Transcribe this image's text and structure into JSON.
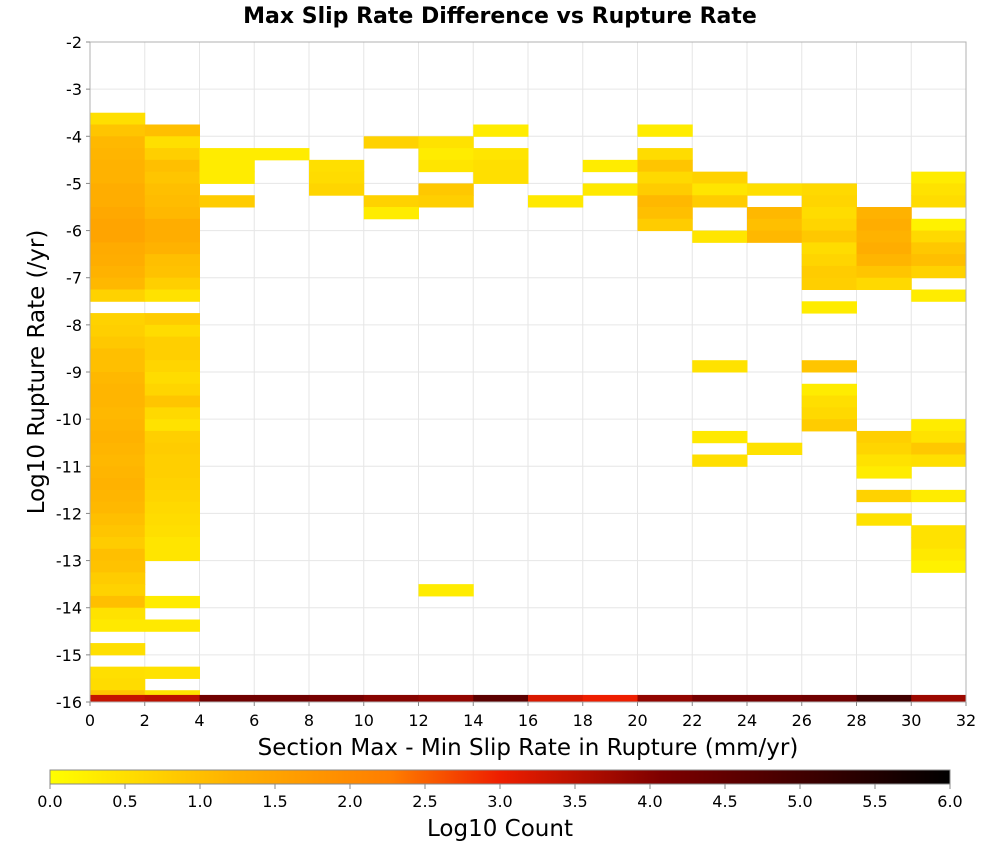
{
  "chart_data": {
    "type": "heatmap",
    "title": "Max Slip Rate Difference vs Rupture Rate",
    "xlabel": "Section Max - Min Slip Rate in Rupture (mm/yr)",
    "ylabel": "Log10 Rupture Rate (/yr)",
    "xlim": [
      0,
      32
    ],
    "ylim": [
      -16,
      -2
    ],
    "x_ticks": [
      "0",
      "2",
      "4",
      "6",
      "8",
      "10",
      "12",
      "14",
      "16",
      "18",
      "20",
      "22",
      "24",
      "26",
      "28",
      "30",
      "32"
    ],
    "y_ticks": [
      "-2",
      "-3",
      "-4",
      "-5",
      "-6",
      "-7",
      "-8",
      "-9",
      "-10",
      "-11",
      "-12",
      "-13",
      "-14",
      "-15",
      "-16"
    ],
    "x_bin_width": 2,
    "y_bin_height": 0.25,
    "grid": true,
    "colorbar": {
      "label": "Log10 Count",
      "range": [
        0,
        6
      ],
      "ticks": [
        "0.0",
        "0.5",
        "1.0",
        "1.5",
        "2.0",
        "2.5",
        "3.0",
        "3.5",
        "4.0",
        "4.5",
        "5.0",
        "5.5",
        "6.0"
      ],
      "colors": [
        "#ffff00",
        "#ffb200",
        "#ff7d00",
        "#ee1e00",
        "#7d0000",
        "#000000"
      ]
    },
    "cells": [
      [
        0,
        -3.5,
        0.5
      ],
      [
        0,
        -3.75,
        0.9
      ],
      [
        0,
        -4,
        1.1
      ],
      [
        0,
        -4.25,
        1.15
      ],
      [
        0,
        -4.5,
        1.2
      ],
      [
        0,
        -4.75,
        1.2
      ],
      [
        0,
        -5,
        1.3
      ],
      [
        0,
        -5.25,
        1.3
      ],
      [
        0,
        -5.5,
        1.4
      ],
      [
        0,
        -5.75,
        1.5
      ],
      [
        0,
        -6,
        1.5
      ],
      [
        0,
        -6.25,
        1.35
      ],
      [
        0,
        -6.5,
        1.3
      ],
      [
        0,
        -6.75,
        1.2
      ],
      [
        0,
        -7,
        1.1
      ],
      [
        0,
        -7.25,
        0.7
      ],
      [
        0,
        -7.75,
        0.7
      ],
      [
        0,
        -8,
        0.75
      ],
      [
        0,
        -8.25,
        0.85
      ],
      [
        0,
        -8.5,
        1.0
      ],
      [
        0,
        -8.75,
        1.0
      ],
      [
        0,
        -9,
        1.1
      ],
      [
        0,
        -9.25,
        1.15
      ],
      [
        0,
        -9.5,
        1.15
      ],
      [
        0,
        -9.75,
        1.1
      ],
      [
        0,
        -10,
        1.15
      ],
      [
        0,
        -10.25,
        1.2
      ],
      [
        0,
        -10.5,
        1.15
      ],
      [
        0,
        -10.75,
        1.1
      ],
      [
        0,
        -11,
        1.15
      ],
      [
        0,
        -11.25,
        1.2
      ],
      [
        0,
        -11.5,
        1.15
      ],
      [
        0,
        -11.75,
        1.1
      ],
      [
        0,
        -12,
        1.0
      ],
      [
        0,
        -12.25,
        0.9
      ],
      [
        0,
        -12.5,
        0.8
      ],
      [
        0,
        -12.75,
        1.0
      ],
      [
        0,
        -13,
        0.95
      ],
      [
        0,
        -13.25,
        0.8
      ],
      [
        0,
        -13.5,
        0.7
      ],
      [
        0,
        -13.75,
        1.0
      ],
      [
        0,
        -14,
        0.45
      ],
      [
        0,
        -14.25,
        0.35
      ],
      [
        0,
        -14.75,
        0.5
      ],
      [
        0,
        -15.25,
        0.5
      ],
      [
        0,
        -15.5,
        0.55
      ],
      [
        0,
        -15.75,
        0.9
      ],
      [
        2,
        -3.75,
        1.0
      ],
      [
        2,
        -4,
        0.5
      ],
      [
        2,
        -4.25,
        0.75
      ],
      [
        2,
        -4.5,
        1.0
      ],
      [
        2,
        -4.75,
        0.9
      ],
      [
        2,
        -5,
        1.0
      ],
      [
        2,
        -5.25,
        1.05
      ],
      [
        2,
        -5.5,
        1.1
      ],
      [
        2,
        -5.75,
        1.3
      ],
      [
        2,
        -6,
        1.3
      ],
      [
        2,
        -6.25,
        1.2
      ],
      [
        2,
        -6.5,
        1.0
      ],
      [
        2,
        -6.75,
        0.95
      ],
      [
        2,
        -7,
        0.75
      ],
      [
        2,
        -7.25,
        0.45
      ],
      [
        2,
        -7.75,
        0.8
      ],
      [
        2,
        -8,
        0.55
      ],
      [
        2,
        -8.25,
        0.75
      ],
      [
        2,
        -8.5,
        0.75
      ],
      [
        2,
        -8.75,
        0.65
      ],
      [
        2,
        -9,
        0.55
      ],
      [
        2,
        -9.25,
        0.65
      ],
      [
        2,
        -9.5,
        0.9
      ],
      [
        2,
        -9.75,
        0.6
      ],
      [
        2,
        -10,
        0.45
      ],
      [
        2,
        -10.25,
        0.75
      ],
      [
        2,
        -10.5,
        0.8
      ],
      [
        2,
        -10.75,
        0.75
      ],
      [
        2,
        -11,
        0.75
      ],
      [
        2,
        -11.25,
        0.7
      ],
      [
        2,
        -11.5,
        0.65
      ],
      [
        2,
        -11.75,
        0.6
      ],
      [
        2,
        -12,
        0.55
      ],
      [
        2,
        -12.25,
        0.5
      ],
      [
        2,
        -12.5,
        0.4
      ],
      [
        2,
        -12.75,
        0.4
      ],
      [
        2,
        -13.75,
        0.3
      ],
      [
        2,
        -14.25,
        0.35
      ],
      [
        2,
        -15.25,
        0.45
      ],
      [
        2,
        -15.75,
        0.45
      ],
      [
        4,
        -4.25,
        0.3
      ],
      [
        4,
        -4.5,
        0.3
      ],
      [
        4,
        -4.75,
        0.3
      ],
      [
        4,
        -5.25,
        0.8
      ],
      [
        6,
        -4.25,
        0.3
      ],
      [
        8,
        -4.5,
        0.5
      ],
      [
        8,
        -4.75,
        0.55
      ],
      [
        8,
        -5,
        0.65
      ],
      [
        10,
        -4,
        0.7
      ],
      [
        10,
        -5.25,
        0.7
      ],
      [
        10,
        -5.5,
        0.3
      ],
      [
        12,
        -4,
        0.45
      ],
      [
        12,
        -4.25,
        0.3
      ],
      [
        12,
        -4.5,
        0.4
      ],
      [
        12,
        -5,
        0.85
      ],
      [
        12,
        -5.25,
        0.75
      ],
      [
        12,
        -13.5,
        0.3
      ],
      [
        14,
        -3.75,
        0.3
      ],
      [
        14,
        -4.25,
        0.4
      ],
      [
        14,
        -4.5,
        0.5
      ],
      [
        14,
        -4.75,
        0.5
      ],
      [
        16,
        -5.25,
        0.35
      ],
      [
        18,
        -4.5,
        0.3
      ],
      [
        18,
        -5,
        0.35
      ],
      [
        20,
        -3.75,
        0.3
      ],
      [
        20,
        -4.25,
        0.55
      ],
      [
        20,
        -4.5,
        0.9
      ],
      [
        20,
        -4.75,
        0.6
      ],
      [
        20,
        -5,
        0.8
      ],
      [
        20,
        -5.25,
        1.1
      ],
      [
        20,
        -5.5,
        1.0
      ],
      [
        20,
        -5.75,
        0.8
      ],
      [
        22,
        -4.75,
        0.7
      ],
      [
        22,
        -5,
        0.4
      ],
      [
        22,
        -5.25,
        0.8
      ],
      [
        22,
        -6,
        0.4
      ],
      [
        22,
        -8.75,
        0.45
      ],
      [
        22,
        -10.25,
        0.35
      ],
      [
        22,
        -10.75,
        0.5
      ],
      [
        24,
        -5,
        0.5
      ],
      [
        24,
        -5.5,
        1.1
      ],
      [
        24,
        -5.75,
        1.0
      ],
      [
        24,
        -6,
        1.1
      ],
      [
        24,
        -10.5,
        0.45
      ],
      [
        26,
        -5,
        0.6
      ],
      [
        26,
        -5.25,
        0.65
      ],
      [
        26,
        -5.5,
        0.55
      ],
      [
        26,
        -5.75,
        0.65
      ],
      [
        26,
        -6,
        0.85
      ],
      [
        26,
        -6.25,
        0.55
      ],
      [
        26,
        -6.5,
        0.65
      ],
      [
        26,
        -6.75,
        0.8
      ],
      [
        26,
        -7,
        0.75
      ],
      [
        26,
        -7.5,
        0.3
      ],
      [
        26,
        -8.75,
        0.9
      ],
      [
        26,
        -9.25,
        0.3
      ],
      [
        26,
        -9.5,
        0.5
      ],
      [
        26,
        -9.75,
        0.6
      ],
      [
        26,
        -10,
        0.8
      ],
      [
        28,
        -5.5,
        1.2
      ],
      [
        28,
        -5.75,
        1.3
      ],
      [
        28,
        -6,
        1.2
      ],
      [
        28,
        -6.25,
        1.3
      ],
      [
        28,
        -6.5,
        1.15
      ],
      [
        28,
        -6.75,
        0.9
      ],
      [
        28,
        -7,
        0.6
      ],
      [
        28,
        -10.25,
        0.75
      ],
      [
        28,
        -10.5,
        0.65
      ],
      [
        28,
        -10.75,
        0.45
      ],
      [
        28,
        -11,
        0.3
      ],
      [
        28,
        -11.5,
        0.7
      ],
      [
        28,
        -12,
        0.45
      ],
      [
        30,
        -4.75,
        0.3
      ],
      [
        30,
        -5,
        0.45
      ],
      [
        30,
        -5.25,
        0.55
      ],
      [
        30,
        -5.75,
        0.2
      ],
      [
        30,
        -6,
        0.6
      ],
      [
        30,
        -6.25,
        0.85
      ],
      [
        30,
        -6.5,
        1.0
      ],
      [
        30,
        -6.75,
        0.7
      ],
      [
        30,
        -7.25,
        0.3
      ],
      [
        30,
        -10,
        0.3
      ],
      [
        30,
        -10.25,
        0.45
      ],
      [
        30,
        -10.5,
        0.85
      ],
      [
        30,
        -10.75,
        0.5
      ],
      [
        30,
        -11.5,
        0.3
      ],
      [
        30,
        -12.25,
        0.45
      ],
      [
        30,
        -12.5,
        0.45
      ],
      [
        30,
        -12.75,
        0.35
      ],
      [
        30,
        -13,
        0.2
      ]
    ],
    "bottom_row": {
      "y": -16,
      "values": [
        3.4,
        3.5,
        4.3,
        4.3,
        4.2,
        4.0,
        3.9,
        4.6,
        3.2,
        3.0,
        3.9,
        4.2,
        4.2,
        4.3,
        5.0,
        3.8
      ]
    }
  }
}
